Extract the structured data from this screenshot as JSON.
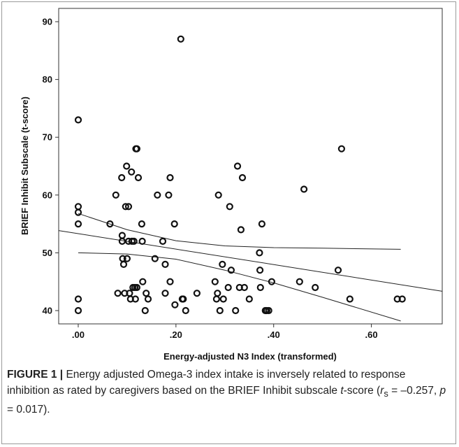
{
  "chart_data": {
    "type": "scatter",
    "xlabel": "Energy-adjusted N3 Index (transformed)",
    "ylabel": "BRIEF Inhibit Subscale (t-score)",
    "xlim": [
      -0.04,
      0.745
    ],
    "ylim": [
      37.7,
      92.3
    ],
    "x_ticks": [
      0.0,
      0.2,
      0.4,
      0.6
    ],
    "x_tick_labels": [
      ".00",
      ".20",
      ".40",
      ".60"
    ],
    "y_ticks": [
      40,
      50,
      60,
      70,
      80,
      90
    ],
    "y_tick_labels": [
      "40",
      "50",
      "60",
      "70",
      "80",
      "90"
    ],
    "grid": false,
    "points": [
      [
        0.0,
        73
      ],
      [
        0.0,
        58
      ],
      [
        0.0,
        57
      ],
      [
        0.0,
        55
      ],
      [
        0.0,
        42
      ],
      [
        0.0,
        40
      ],
      [
        0.065,
        55
      ],
      [
        0.077,
        60
      ],
      [
        0.081,
        43
      ],
      [
        0.089,
        63
      ],
      [
        0.09,
        53
      ],
      [
        0.09,
        52
      ],
      [
        0.091,
        49
      ],
      [
        0.093,
        48
      ],
      [
        0.095,
        43
      ],
      [
        0.097,
        58
      ],
      [
        0.099,
        65
      ],
      [
        0.1,
        49
      ],
      [
        0.103,
        58
      ],
      [
        0.103,
        52
      ],
      [
        0.105,
        43
      ],
      [
        0.107,
        42
      ],
      [
        0.109,
        64
      ],
      [
        0.11,
        52
      ],
      [
        0.112,
        44
      ],
      [
        0.114,
        52
      ],
      [
        0.116,
        44
      ],
      [
        0.117,
        42
      ],
      [
        0.118,
        68
      ],
      [
        0.12,
        68
      ],
      [
        0.12,
        44
      ],
      [
        0.123,
        63
      ],
      [
        0.13,
        55
      ],
      [
        0.131,
        52
      ],
      [
        0.132,
        45
      ],
      [
        0.137,
        40
      ],
      [
        0.139,
        43
      ],
      [
        0.143,
        42
      ],
      [
        0.157,
        49
      ],
      [
        0.162,
        60
      ],
      [
        0.173,
        52
      ],
      [
        0.178,
        43
      ],
      [
        0.178,
        48
      ],
      [
        0.185,
        60
      ],
      [
        0.188,
        63
      ],
      [
        0.188,
        45
      ],
      [
        0.197,
        55
      ],
      [
        0.198,
        41
      ],
      [
        0.21,
        87
      ],
      [
        0.213,
        42
      ],
      [
        0.215,
        42
      ],
      [
        0.22,
        40
      ],
      [
        0.243,
        43
      ],
      [
        0.28,
        45
      ],
      [
        0.283,
        42
      ],
      [
        0.285,
        43
      ],
      [
        0.287,
        60
      ],
      [
        0.29,
        40
      ],
      [
        0.295,
        48
      ],
      [
        0.297,
        42
      ],
      [
        0.307,
        44
      ],
      [
        0.31,
        58
      ],
      [
        0.313,
        47
      ],
      [
        0.322,
        40
      ],
      [
        0.326,
        65
      ],
      [
        0.33,
        44
      ],
      [
        0.333,
        54
      ],
      [
        0.336,
        63
      ],
      [
        0.34,
        44
      ],
      [
        0.35,
        42
      ],
      [
        0.371,
        50
      ],
      [
        0.372,
        47
      ],
      [
        0.373,
        44
      ],
      [
        0.376,
        55
      ],
      [
        0.383,
        40
      ],
      [
        0.386,
        40
      ],
      [
        0.39,
        40
      ],
      [
        0.396,
        45
      ],
      [
        0.453,
        45
      ],
      [
        0.462,
        61
      ],
      [
        0.485,
        44
      ],
      [
        0.532,
        47
      ],
      [
        0.539,
        68
      ],
      [
        0.556,
        42
      ],
      [
        0.653,
        42
      ],
      [
        0.663,
        42
      ]
    ],
    "fit": {
      "type": "linear",
      "x": [
        -0.04,
        0.745
      ],
      "y": [
        53.85,
        43.35
      ]
    },
    "ci_upper": {
      "x": [
        0.0,
        0.1,
        0.2,
        0.3,
        0.4,
        0.5,
        0.66
      ],
      "y": [
        56.8,
        54.0,
        52.1,
        51.2,
        50.9,
        50.8,
        50.6
      ]
    },
    "ci_lower": {
      "x": [
        0.0,
        0.1,
        0.2,
        0.3,
        0.4,
        0.5,
        0.66
      ],
      "y": [
        50.0,
        49.8,
        48.9,
        47.0,
        44.8,
        42.3,
        38.2
      ]
    }
  },
  "caption": {
    "label": "FIGURE 1 |",
    "text_1": " Energy adjusted Omega-3 index intake is inversely related to response inhibition as rated by caregivers based on the BRIEF Inhibit subscale ",
    "t_italic": "t",
    "text_2": "-score (",
    "r_italic": "r",
    "r_sub": "s",
    "text_3": " = –0.257, ",
    "p_italic": "p",
    "text_4": " = 0.017)."
  }
}
